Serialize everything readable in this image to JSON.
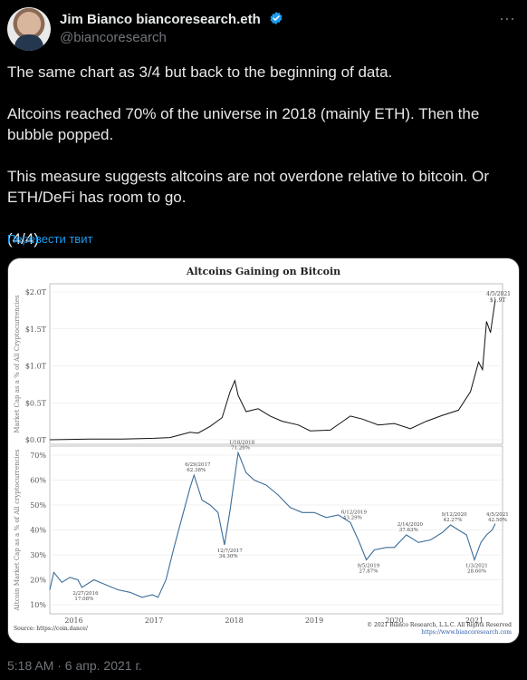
{
  "user": {
    "name": "Jim Bianco biancoresearch.eth",
    "handle": "@biancoresearch"
  },
  "tweet": {
    "paragraphs": [
      "The same chart as 3/4 but back to the beginning of data.",
      "Altcoins reached 70% of the universe in 2018 (mainly ETH).  Then the bubble popped.",
      "This measure suggests altcoins are not overdone relative to bitcoin.  Or ETH/DeFi has room to go.",
      "(4/4)"
    ],
    "translate_label": "Перевести твит",
    "timestamp": "5:18 AM · 6 апр. 2021 г."
  },
  "chart_data": {
    "type": "line",
    "title": "Altcoins Gaining on Bitcoin",
    "x_ticks": [
      "2016",
      "2017",
      "2018",
      "2019",
      "2020",
      "2021"
    ],
    "source": "Source: https://coin.dance/",
    "copyright": "© 2021 Bianco Research, L.L.C. All Rights Reserved",
    "site": "https://www.biancoresearch.com",
    "top_panel": {
      "ylabel": "Market Cap as a % of All Cryptocurrencies",
      "y_ticks": [
        "$0.0T",
        "$0.5T",
        "$1.0T",
        "$1.5T",
        "$2.0T"
      ],
      "ylim": [
        0,
        2.0
      ],
      "last_label_date": "4/5/2021",
      "last_label_value": "$1.9T",
      "series": [
        {
          "date": "2015.7",
          "v": 0.0
        },
        {
          "date": "2016.2",
          "v": 0.01
        },
        {
          "date": "2016.6",
          "v": 0.01
        },
        {
          "date": "2017.0",
          "v": 0.02
        },
        {
          "date": "2017.2",
          "v": 0.03
        },
        {
          "date": "2017.45",
          "v": 0.1
        },
        {
          "date": "2017.55",
          "v": 0.09
        },
        {
          "date": "2017.7",
          "v": 0.18
        },
        {
          "date": "2017.85",
          "v": 0.3
        },
        {
          "date": "2017.95",
          "v": 0.65
        },
        {
          "date": "2018.01",
          "v": 0.8
        },
        {
          "date": "2018.05",
          "v": 0.6
        },
        {
          "date": "2018.15",
          "v": 0.38
        },
        {
          "date": "2018.3",
          "v": 0.42
        },
        {
          "date": "2018.45",
          "v": 0.32
        },
        {
          "date": "2018.6",
          "v": 0.25
        },
        {
          "date": "2018.8",
          "v": 0.2
        },
        {
          "date": "2018.95",
          "v": 0.12
        },
        {
          "date": "2019.2",
          "v": 0.13
        },
        {
          "date": "2019.45",
          "v": 0.32
        },
        {
          "date": "2019.6",
          "v": 0.28
        },
        {
          "date": "2019.8",
          "v": 0.2
        },
        {
          "date": "2020.0",
          "v": 0.22
        },
        {
          "date": "2020.2",
          "v": 0.15
        },
        {
          "date": "2020.4",
          "v": 0.25
        },
        {
          "date": "2020.6",
          "v": 0.33
        },
        {
          "date": "2020.8",
          "v": 0.4
        },
        {
          "date": "2020.95",
          "v": 0.65
        },
        {
          "date": "2021.05",
          "v": 1.05
        },
        {
          "date": "2021.1",
          "v": 0.95
        },
        {
          "date": "2021.15",
          "v": 1.6
        },
        {
          "date": "2021.2",
          "v": 1.45
        },
        {
          "date": "2021.26",
          "v": 1.9
        }
      ]
    },
    "bottom_panel": {
      "ylabel": "Altcoin Market Cap as a % of All cryptocurrencies",
      "y_ticks": [
        "10%",
        "20%",
        "30%",
        "40%",
        "50%",
        "60%",
        "70%"
      ],
      "ylim": [
        10,
        70
      ],
      "annotations": [
        {
          "date_label": "2/27/2016",
          "value_label": "17.08%",
          "x": "2016.1",
          "y": 17
        },
        {
          "date_label": "6/29/2017",
          "value_label": "62.38%",
          "x": "2017.5",
          "y": 62
        },
        {
          "date_label": "12/7/2017",
          "value_label": "34.30%",
          "x": "2017.9",
          "y": 34
        },
        {
          "date_label": "1/18/2018",
          "value_label": "71.26%",
          "x": "2018.05",
          "y": 71
        },
        {
          "date_label": "6/12/2019",
          "value_label": "43.29%",
          "x": "2019.45",
          "y": 43
        },
        {
          "date_label": "9/5/2019",
          "value_label": "27.87%",
          "x": "2019.65",
          "y": 28
        },
        {
          "date_label": "2/14/2020",
          "value_label": "37.63%",
          "x": "2020.15",
          "y": 38
        },
        {
          "date_label": "9/12/2020",
          "value_label": "42.27%",
          "x": "2020.7",
          "y": 42
        },
        {
          "date_label": "1/3/2021",
          "value_label": "28.60%",
          "x": "2021.0",
          "y": 28
        },
        {
          "date_label": "4/5/2021",
          "value_label": "42.50%",
          "x": "2021.26",
          "y": 42
        }
      ],
      "series": [
        {
          "date": "2015.7",
          "v": 16
        },
        {
          "date": "2015.75",
          "v": 23
        },
        {
          "date": "2015.85",
          "v": 19
        },
        {
          "date": "2015.95",
          "v": 21
        },
        {
          "date": "2016.05",
          "v": 20
        },
        {
          "date": "2016.1",
          "v": 17
        },
        {
          "date": "2016.25",
          "v": 20
        },
        {
          "date": "2016.4",
          "v": 18
        },
        {
          "date": "2016.55",
          "v": 16
        },
        {
          "date": "2016.7",
          "v": 15
        },
        {
          "date": "2016.85",
          "v": 13
        },
        {
          "date": "2016.98",
          "v": 14
        },
        {
          "date": "2017.05",
          "v": 13
        },
        {
          "date": "2017.15",
          "v": 20
        },
        {
          "date": "2017.25",
          "v": 33
        },
        {
          "date": "2017.35",
          "v": 45
        },
        {
          "date": "2017.45",
          "v": 57
        },
        {
          "date": "2017.5",
          "v": 62
        },
        {
          "date": "2017.6",
          "v": 52
        },
        {
          "date": "2017.7",
          "v": 50
        },
        {
          "date": "2017.8",
          "v": 47
        },
        {
          "date": "2017.88",
          "v": 34
        },
        {
          "date": "2017.95",
          "v": 48
        },
        {
          "date": "2018.05",
          "v": 71
        },
        {
          "date": "2018.15",
          "v": 63
        },
        {
          "date": "2018.25",
          "v": 60
        },
        {
          "date": "2018.4",
          "v": 58
        },
        {
          "date": "2018.55",
          "v": 54
        },
        {
          "date": "2018.7",
          "v": 49
        },
        {
          "date": "2018.85",
          "v": 47
        },
        {
          "date": "2019.0",
          "v": 47
        },
        {
          "date": "2019.15",
          "v": 45
        },
        {
          "date": "2019.3",
          "v": 46
        },
        {
          "date": "2019.45",
          "v": 43
        },
        {
          "date": "2019.55",
          "v": 36
        },
        {
          "date": "2019.65",
          "v": 28
        },
        {
          "date": "2019.75",
          "v": 32
        },
        {
          "date": "2019.9",
          "v": 33
        },
        {
          "date": "2020.0",
          "v": 33
        },
        {
          "date": "2020.15",
          "v": 38
        },
        {
          "date": "2020.3",
          "v": 35
        },
        {
          "date": "2020.45",
          "v": 36
        },
        {
          "date": "2020.6",
          "v": 39
        },
        {
          "date": "2020.7",
          "v": 42
        },
        {
          "date": "2020.8",
          "v": 40
        },
        {
          "date": "2020.9",
          "v": 38
        },
        {
          "date": "2021.0",
          "v": 28
        },
        {
          "date": "2021.08",
          "v": 35
        },
        {
          "date": "2021.15",
          "v": 38
        },
        {
          "date": "2021.22",
          "v": 40
        },
        {
          "date": "2021.26",
          "v": 42.5
        }
      ]
    }
  }
}
